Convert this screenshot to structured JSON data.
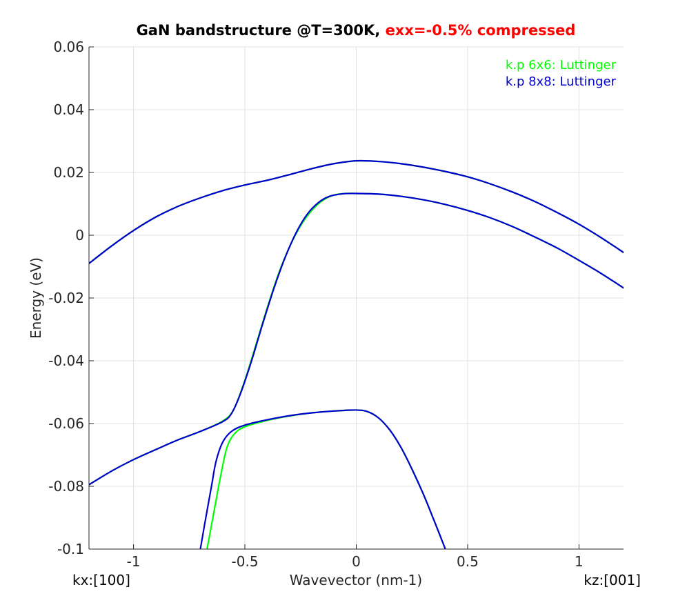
{
  "chart_data": {
    "type": "line",
    "title": {
      "prefix": "GaN bandstructure @T=300K,",
      "highlight": "exx=-0.5% compressed",
      "highlight_color": "#ff0000"
    },
    "xlabel": "Wavevector (nm-1)",
    "ylabel": "Energy (eV)",
    "xlim": [
      -1.2,
      1.2
    ],
    "ylim": [
      -0.1,
      0.06
    ],
    "xticks": [
      -1,
      -0.5,
      0,
      0.5,
      1
    ],
    "xtick_labels": [
      "-1",
      "-0.5",
      "0",
      "0.5",
      "1"
    ],
    "yticks": [
      -0.1,
      -0.08,
      -0.06,
      -0.04,
      -0.02,
      0,
      0.02,
      0.04,
      0.06
    ],
    "ytick_labels": [
      "-0.1",
      "-0.08",
      "-0.06",
      "-0.04",
      "-0.02",
      "0",
      "0.02",
      "0.04",
      "0.06"
    ],
    "grid": true,
    "legend_position": "top-right",
    "direction_labels": {
      "left": "kx:[100]",
      "right": "kz:[001]"
    },
    "series": [
      {
        "name": "k.p 6x6: Luttinger",
        "color": "#00ff00",
        "bands": [
          [
            [
              -1.2,
              -0.009
            ],
            [
              -1.1,
              -0.0035
            ],
            [
              -1.0,
              0.0015
            ],
            [
              -0.9,
              0.0058
            ],
            [
              -0.8,
              0.0092
            ],
            [
              -0.7,
              0.0119
            ],
            [
              -0.6,
              0.0142
            ],
            [
              -0.5,
              0.016
            ],
            [
              -0.4,
              0.0175
            ],
            [
              -0.3,
              0.0193
            ],
            [
              -0.2,
              0.0212
            ],
            [
              -0.1,
              0.0228
            ],
            [
              0,
              0.0237
            ],
            [
              0.1,
              0.0235
            ],
            [
              0.2,
              0.0228
            ],
            [
              0.3,
              0.0217
            ],
            [
              0.4,
              0.0203
            ],
            [
              0.5,
              0.0186
            ],
            [
              0.6,
              0.0164
            ],
            [
              0.7,
              0.0138
            ],
            [
              0.8,
              0.0108
            ],
            [
              0.9,
              0.0073
            ],
            [
              1.0,
              0.0035
            ],
            [
              1.1,
              -0.0008
            ],
            [
              1.2,
              -0.0055
            ]
          ],
          [
            [
              -1.2,
              -0.0795
            ],
            [
              -1.1,
              -0.0752
            ],
            [
              -1.0,
              -0.0715
            ],
            [
              -0.9,
              -0.0683
            ],
            [
              -0.8,
              -0.0652
            ],
            [
              -0.7,
              -0.0625
            ],
            [
              -0.6,
              -0.0592
            ],
            [
              -0.55,
              -0.0555
            ],
            [
              -0.5,
              -0.0462
            ],
            [
              -0.45,
              -0.0348
            ],
            [
              -0.4,
              -0.0232
            ],
            [
              -0.35,
              -0.0125
            ],
            [
              -0.3,
              -0.0038
            ],
            [
              -0.25,
              0.003
            ],
            [
              -0.2,
              0.0079
            ],
            [
              -0.15,
              0.0111
            ],
            [
              -0.1,
              0.0128
            ],
            [
              -0.05,
              0.0133
            ],
            [
              0,
              0.0133
            ],
            [
              0.1,
              0.0131
            ],
            [
              0.2,
              0.0124
            ],
            [
              0.3,
              0.0113
            ],
            [
              0.4,
              0.0098
            ],
            [
              0.5,
              0.0079
            ],
            [
              0.6,
              0.0056
            ],
            [
              0.7,
              0.0028
            ],
            [
              0.8,
              -0.0005
            ],
            [
              0.9,
              -0.004
            ],
            [
              1.0,
              -0.008
            ],
            [
              1.1,
              -0.0122
            ],
            [
              1.2,
              -0.0168
            ]
          ],
          [
            [
              -0.67,
              -0.1
            ],
            [
              -0.65,
              -0.0924
            ],
            [
              -0.62,
              -0.0808
            ],
            [
              -0.6,
              -0.0735
            ],
            [
              -0.58,
              -0.0675
            ],
            [
              -0.55,
              -0.0635
            ],
            [
              -0.5,
              -0.061
            ],
            [
              -0.4,
              -0.059
            ],
            [
              -0.3,
              -0.0576
            ],
            [
              -0.2,
              -0.0566
            ],
            [
              -0.1,
              -0.056
            ],
            [
              0,
              -0.0557
            ],
            [
              0.05,
              -0.0562
            ],
            [
              0.1,
              -0.0582
            ],
            [
              0.15,
              -0.062
            ],
            [
              0.2,
              -0.0675
            ],
            [
              0.25,
              -0.0745
            ],
            [
              0.3,
              -0.0823
            ],
            [
              0.35,
              -0.091
            ],
            [
              0.4,
              -0.1
            ]
          ]
        ]
      },
      {
        "name": "k.p 8x8: Luttinger",
        "color": "#0000cd",
        "bands": [
          [
            [
              -1.2,
              -0.009
            ],
            [
              -1.1,
              -0.0035
            ],
            [
              -1.0,
              0.0015
            ],
            [
              -0.9,
              0.0058
            ],
            [
              -0.8,
              0.0092
            ],
            [
              -0.7,
              0.0119
            ],
            [
              -0.6,
              0.0142
            ],
            [
              -0.5,
              0.016
            ],
            [
              -0.4,
              0.0175
            ],
            [
              -0.3,
              0.0193
            ],
            [
              -0.2,
              0.0212
            ],
            [
              -0.1,
              0.0228
            ],
            [
              0,
              0.0237
            ],
            [
              0.1,
              0.0235
            ],
            [
              0.2,
              0.0228
            ],
            [
              0.3,
              0.0217
            ],
            [
              0.4,
              0.0203
            ],
            [
              0.5,
              0.0186
            ],
            [
              0.6,
              0.0164
            ],
            [
              0.7,
              0.0138
            ],
            [
              0.8,
              0.0108
            ],
            [
              0.9,
              0.0073
            ],
            [
              1.0,
              0.0035
            ],
            [
              1.1,
              -0.0008
            ],
            [
              1.2,
              -0.0055
            ]
          ],
          [
            [
              -1.2,
              -0.0795
            ],
            [
              -1.1,
              -0.0752
            ],
            [
              -1.0,
              -0.0715
            ],
            [
              -0.9,
              -0.0683
            ],
            [
              -0.8,
              -0.0652
            ],
            [
              -0.7,
              -0.0625
            ],
            [
              -0.6,
              -0.0594
            ],
            [
              -0.56,
              -0.0568
            ],
            [
              -0.52,
              -0.0505
            ],
            [
              -0.47,
              -0.04
            ],
            [
              -0.42,
              -0.0282
            ],
            [
              -0.37,
              -0.017
            ],
            [
              -0.32,
              -0.0072
            ],
            [
              -0.27,
              0.0008
            ],
            [
              -0.22,
              0.0067
            ],
            [
              -0.17,
              0.0104
            ],
            [
              -0.12,
              0.0124
            ],
            [
              -0.06,
              0.0132
            ],
            [
              0,
              0.0133
            ],
            [
              0.1,
              0.0131
            ],
            [
              0.2,
              0.0124
            ],
            [
              0.3,
              0.0113
            ],
            [
              0.4,
              0.0098
            ],
            [
              0.5,
              0.0079
            ],
            [
              0.6,
              0.0056
            ],
            [
              0.7,
              0.0028
            ],
            [
              0.8,
              -0.0005
            ],
            [
              0.9,
              -0.004
            ],
            [
              1.0,
              -0.008
            ],
            [
              1.1,
              -0.0122
            ],
            [
              1.2,
              -0.0168
            ]
          ],
          [
            [
              -0.7,
              -0.1
            ],
            [
              -0.68,
              -0.0918
            ],
            [
              -0.65,
              -0.08
            ],
            [
              -0.63,
              -0.0722
            ],
            [
              -0.6,
              -0.066
            ],
            [
              -0.56,
              -0.0625
            ],
            [
              -0.5,
              -0.0605
            ],
            [
              -0.4,
              -0.0588
            ],
            [
              -0.3,
              -0.0575
            ],
            [
              -0.2,
              -0.0566
            ],
            [
              -0.1,
              -0.056
            ],
            [
              0,
              -0.0557
            ],
            [
              0.05,
              -0.0562
            ],
            [
              0.1,
              -0.0582
            ],
            [
              0.15,
              -0.062
            ],
            [
              0.2,
              -0.0675
            ],
            [
              0.25,
              -0.0745
            ],
            [
              0.3,
              -0.0823
            ],
            [
              0.35,
              -0.091
            ],
            [
              0.4,
              -0.1
            ]
          ]
        ]
      }
    ]
  }
}
